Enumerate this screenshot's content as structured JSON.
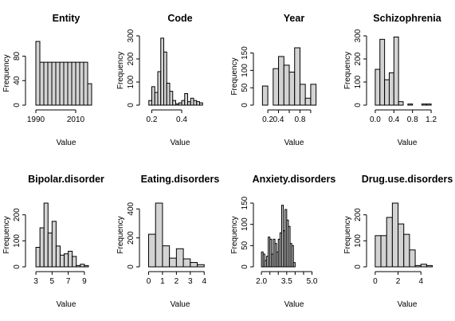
{
  "chart_data": [
    {
      "type": "bar",
      "title": "Entity",
      "xlabel": "Value",
      "ylabel": "Frequency",
      "xlim": [
        1988,
        2018
      ],
      "ylim": [
        0,
        104
      ],
      "xticks": [
        1990,
        2010
      ],
      "yticks": [
        0,
        40,
        80
      ],
      "bins": [
        {
          "from": 1990,
          "to": 1992,
          "count": 104
        },
        {
          "from": 1992,
          "to": 1994,
          "count": 70
        },
        {
          "from": 1994,
          "to": 1996,
          "count": 70
        },
        {
          "from": 1996,
          "to": 1998,
          "count": 70
        },
        {
          "from": 1998,
          "to": 2000,
          "count": 70
        },
        {
          "from": 2000,
          "to": 2002,
          "count": 70
        },
        {
          "from": 2002,
          "to": 2004,
          "count": 70
        },
        {
          "from": 2004,
          "to": 2006,
          "count": 70
        },
        {
          "from": 2006,
          "to": 2008,
          "count": 70
        },
        {
          "from": 2008,
          "to": 2010,
          "count": 70
        },
        {
          "from": 2010,
          "to": 2012,
          "count": 70
        },
        {
          "from": 2012,
          "to": 2014,
          "count": 70
        },
        {
          "from": 2014,
          "to": 2016,
          "count": 70
        },
        {
          "from": 2016,
          "to": 2018,
          "count": 35
        }
      ]
    },
    {
      "type": "bar",
      "title": "Code",
      "xlabel": "Value",
      "ylabel": "Frequency",
      "xlim": [
        0.16,
        0.56
      ],
      "ylim": [
        0,
        300
      ],
      "xticks": [
        0.2,
        0.4
      ],
      "yticks": [
        0,
        100,
        200,
        300
      ],
      "bins": [
        {
          "from": 0.18,
          "to": 0.2,
          "count": 20
        },
        {
          "from": 0.2,
          "to": 0.22,
          "count": 80
        },
        {
          "from": 0.22,
          "to": 0.24,
          "count": 55
        },
        {
          "from": 0.24,
          "to": 0.26,
          "count": 145
        },
        {
          "from": 0.26,
          "to": 0.28,
          "count": 290
        },
        {
          "from": 0.28,
          "to": 0.3,
          "count": 230
        },
        {
          "from": 0.3,
          "to": 0.32,
          "count": 95
        },
        {
          "from": 0.32,
          "to": 0.34,
          "count": 60
        },
        {
          "from": 0.34,
          "to": 0.36,
          "count": 20
        },
        {
          "from": 0.36,
          "to": 0.38,
          "count": 5
        },
        {
          "from": 0.38,
          "to": 0.4,
          "count": 10
        },
        {
          "from": 0.4,
          "to": 0.42,
          "count": 20
        },
        {
          "from": 0.42,
          "to": 0.44,
          "count": 50
        },
        {
          "from": 0.44,
          "to": 0.46,
          "count": 15
        },
        {
          "from": 0.46,
          "to": 0.48,
          "count": 30
        },
        {
          "from": 0.48,
          "to": 0.5,
          "count": 20
        },
        {
          "from": 0.5,
          "to": 0.52,
          "count": 15
        },
        {
          "from": 0.52,
          "to": 0.54,
          "count": 10
        }
      ]
    },
    {
      "type": "bar",
      "title": "Year",
      "xlabel": "Value",
      "ylabel": "Frequency",
      "xlim": [
        0.05,
        1.15
      ],
      "ylim": [
        0,
        165
      ],
      "xticks": [
        0.2,
        0.4,
        0.6,
        0.8,
        1.0
      ],
      "xticklabels": [
        "0.2",
        "0.4",
        "",
        "0.8",
        ""
      ],
      "yticks": [
        0,
        50,
        100,
        150
      ],
      "bins": [
        {
          "from": 0.1,
          "to": 0.2,
          "count": 55
        },
        {
          "from": 0.2,
          "to": 0.3,
          "count": 0
        },
        {
          "from": 0.3,
          "to": 0.4,
          "count": 105
        },
        {
          "from": 0.4,
          "to": 0.5,
          "count": 140
        },
        {
          "from": 0.5,
          "to": 0.6,
          "count": 115
        },
        {
          "from": 0.6,
          "to": 0.7,
          "count": 95
        },
        {
          "from": 0.7,
          "to": 0.8,
          "count": 165
        },
        {
          "from": 0.8,
          "to": 0.9,
          "count": 60
        },
        {
          "from": 0.9,
          "to": 1.0,
          "count": 20
        },
        {
          "from": 1.0,
          "to": 1.1,
          "count": 60
        }
      ]
    },
    {
      "type": "bar",
      "title": "Schizophrenia",
      "xlabel": "Value",
      "ylabel": "Frequency",
      "xlim": [
        -0.05,
        1.25
      ],
      "ylim": [
        0,
        300
      ],
      "xticks": [
        0.0,
        0.4,
        0.8,
        1.2
      ],
      "xticklabels": [
        "0.0",
        "0.4",
        "0.8",
        "1.2"
      ],
      "yticks": [
        0,
        100,
        200,
        300
      ],
      "bins": [
        {
          "from": 0.0,
          "to": 0.1,
          "count": 155
        },
        {
          "from": 0.1,
          "to": 0.2,
          "count": 285
        },
        {
          "from": 0.2,
          "to": 0.3,
          "count": 110
        },
        {
          "from": 0.3,
          "to": 0.4,
          "count": 140
        },
        {
          "from": 0.4,
          "to": 0.5,
          "count": 295
        },
        {
          "from": 0.5,
          "to": 0.6,
          "count": 15
        },
        {
          "from": 0.6,
          "to": 0.7,
          "count": 0
        },
        {
          "from": 0.7,
          "to": 0.8,
          "count": 5
        },
        {
          "from": 0.8,
          "to": 0.9,
          "count": 0
        },
        {
          "from": 0.9,
          "to": 1.0,
          "count": 0
        },
        {
          "from": 1.0,
          "to": 1.1,
          "count": 5
        },
        {
          "from": 1.1,
          "to": 1.2,
          "count": 5
        }
      ]
    },
    {
      "type": "bar",
      "title": "Bipolar.disorder",
      "xlabel": "Value",
      "ylabel": "Frequency",
      "xlim": [
        2.5,
        9.8
      ],
      "ylim": [
        0,
        245
      ],
      "xticks": [
        3,
        5,
        7,
        9
      ],
      "yticks": [
        0,
        100,
        200
      ],
      "bins": [
        {
          "from": 3.0,
          "to": 3.5,
          "count": 75
        },
        {
          "from": 3.5,
          "to": 4.0,
          "count": 150
        },
        {
          "from": 4.0,
          "to": 4.5,
          "count": 245
        },
        {
          "from": 4.5,
          "to": 5.0,
          "count": 130
        },
        {
          "from": 5.0,
          "to": 5.5,
          "count": 175
        },
        {
          "from": 5.5,
          "to": 6.0,
          "count": 80
        },
        {
          "from": 6.0,
          "to": 6.5,
          "count": 45
        },
        {
          "from": 6.5,
          "to": 7.0,
          "count": 50
        },
        {
          "from": 7.0,
          "to": 7.5,
          "count": 60
        },
        {
          "from": 7.5,
          "to": 8.0,
          "count": 40
        },
        {
          "from": 8.0,
          "to": 8.5,
          "count": 5
        },
        {
          "from": 8.5,
          "to": 9.0,
          "count": 10
        },
        {
          "from": 9.0,
          "to": 9.5,
          "count": 5
        }
      ]
    },
    {
      "type": "bar",
      "title": "Eating.disorders",
      "xlabel": "Value",
      "ylabel": "Frequency",
      "xlim": [
        -0.2,
        4.1
      ],
      "ylim": [
        0,
        440
      ],
      "xticks": [
        0,
        1,
        2,
        3,
        4
      ],
      "yticks": [
        0,
        200,
        400
      ],
      "bins": [
        {
          "from": 0.0,
          "to": 0.5,
          "count": 225
        },
        {
          "from": 0.5,
          "to": 1.0,
          "count": 440
        },
        {
          "from": 1.0,
          "to": 1.5,
          "count": 145
        },
        {
          "from": 1.5,
          "to": 2.0,
          "count": 60
        },
        {
          "from": 2.0,
          "to": 2.5,
          "count": 125
        },
        {
          "from": 2.5,
          "to": 3.0,
          "count": 55
        },
        {
          "from": 3.0,
          "to": 3.5,
          "count": 30
        },
        {
          "from": 3.5,
          "to": 4.0,
          "count": 15
        }
      ]
    },
    {
      "type": "bar",
      "title": "Anxiety.disorders",
      "xlabel": "Value",
      "ylabel": "Frequency",
      "xlim": [
        1.9,
        5.4
      ],
      "ylim": [
        0,
        150
      ],
      "xticks": [
        2.0,
        2.5,
        3.0,
        3.5,
        4.0,
        4.5,
        5.0
      ],
      "xticklabels": [
        "2.0",
        "",
        "",
        "3.5",
        "",
        "",
        "5.0"
      ],
      "yticks": [
        0,
        50,
        100,
        150
      ],
      "bins": [
        {
          "from": 2.0,
          "to": 2.1,
          "count": 35
        },
        {
          "from": 2.1,
          "to": 2.2,
          "count": 30
        },
        {
          "from": 2.2,
          "to": 2.3,
          "count": 15
        },
        {
          "from": 2.3,
          "to": 2.4,
          "count": 25
        },
        {
          "from": 2.4,
          "to": 2.5,
          "count": 70
        },
        {
          "from": 2.5,
          "to": 2.6,
          "count": 65
        },
        {
          "from": 2.6,
          "to": 2.7,
          "count": 30
        },
        {
          "from": 2.7,
          "to": 2.8,
          "count": 65
        },
        {
          "from": 2.8,
          "to": 2.9,
          "count": 55
        },
        {
          "from": 2.9,
          "to": 3.0,
          "count": 35
        },
        {
          "from": 3.0,
          "to": 3.1,
          "count": 65
        },
        {
          "from": 3.1,
          "to": 3.2,
          "count": 80
        },
        {
          "from": 3.2,
          "to": 3.3,
          "count": 145
        },
        {
          "from": 3.3,
          "to": 3.4,
          "count": 85
        },
        {
          "from": 3.4,
          "to": 3.5,
          "count": 135
        },
        {
          "from": 3.5,
          "to": 3.6,
          "count": 110
        },
        {
          "from": 3.6,
          "to": 3.7,
          "count": 95
        },
        {
          "from": 3.7,
          "to": 3.8,
          "count": 55
        },
        {
          "from": 3.8,
          "to": 3.9,
          "count": 50
        },
        {
          "from": 3.9,
          "to": 4.0,
          "count": 10
        }
      ]
    },
    {
      "type": "bar",
      "title": "Drug.use.disorders",
      "xlabel": "Value",
      "ylabel": "Frequency",
      "xlim": [
        -0.2,
        5.1
      ],
      "ylim": [
        0,
        245
      ],
      "xticks": [
        0,
        2,
        4
      ],
      "yticks": [
        0,
        100,
        200
      ],
      "bins": [
        {
          "from": 0.0,
          "to": 0.5,
          "count": 120
        },
        {
          "from": 0.5,
          "to": 1.0,
          "count": 120
        },
        {
          "from": 1.0,
          "to": 1.5,
          "count": 190
        },
        {
          "from": 1.5,
          "to": 2.0,
          "count": 245
        },
        {
          "from": 2.0,
          "to": 2.5,
          "count": 165
        },
        {
          "from": 2.5,
          "to": 3.0,
          "count": 125
        },
        {
          "from": 3.0,
          "to": 3.5,
          "count": 65
        },
        {
          "from": 3.5,
          "to": 4.0,
          "count": 5
        },
        {
          "from": 4.0,
          "to": 4.5,
          "count": 10
        },
        {
          "from": 4.5,
          "to": 5.0,
          "count": 5
        }
      ]
    }
  ]
}
